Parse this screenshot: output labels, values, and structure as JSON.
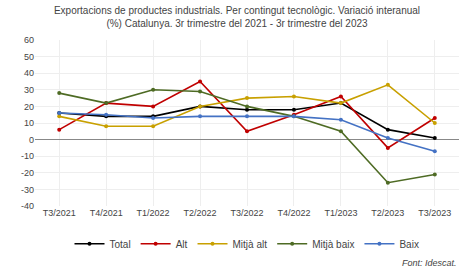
{
  "chart_data": {
    "type": "line",
    "title": "Exportacions de productes industrials. Per contingut tecnològic. Variació interanual\n(%) Catalunya. 3r trimestre del 2021 - 3r trimestre del 2023",
    "categories": [
      "T3/2021",
      "T4/2021",
      "T1/2022",
      "T2/2022",
      "T3/2022",
      "T4/2022",
      "T1/2023",
      "T2/2023",
      "T3/2023"
    ],
    "series": [
      {
        "name": "Total",
        "color": "#000000",
        "values": [
          16,
          14,
          14,
          20,
          18,
          18,
          22,
          6,
          1
        ]
      },
      {
        "name": "Alt",
        "color": "#c00000",
        "values": [
          6,
          22,
          20,
          35,
          5,
          15,
          26,
          -5,
          13
        ]
      },
      {
        "name": "Mitjà alt",
        "color": "#c8a000",
        "values": [
          14,
          8,
          8,
          20,
          25,
          26,
          22,
          33,
          10
        ]
      },
      {
        "name": "Mitjà baix",
        "color": "#4e6b24",
        "values": [
          28,
          22,
          30,
          29,
          20,
          14,
          5,
          -26,
          -21
        ]
      },
      {
        "name": "Baix",
        "color": "#4472c4",
        "values": [
          16,
          15,
          13,
          14,
          14,
          14,
          12,
          1,
          -7
        ]
      }
    ],
    "ylim": [
      -40,
      60
    ],
    "yticks": [
      -40,
      -30,
      -20,
      -10,
      0,
      10,
      20,
      30,
      40,
      50,
      60
    ],
    "grid": true,
    "legend": "bottom",
    "marker": "circle",
    "annotations": [
      "Font: Idescat."
    ]
  }
}
